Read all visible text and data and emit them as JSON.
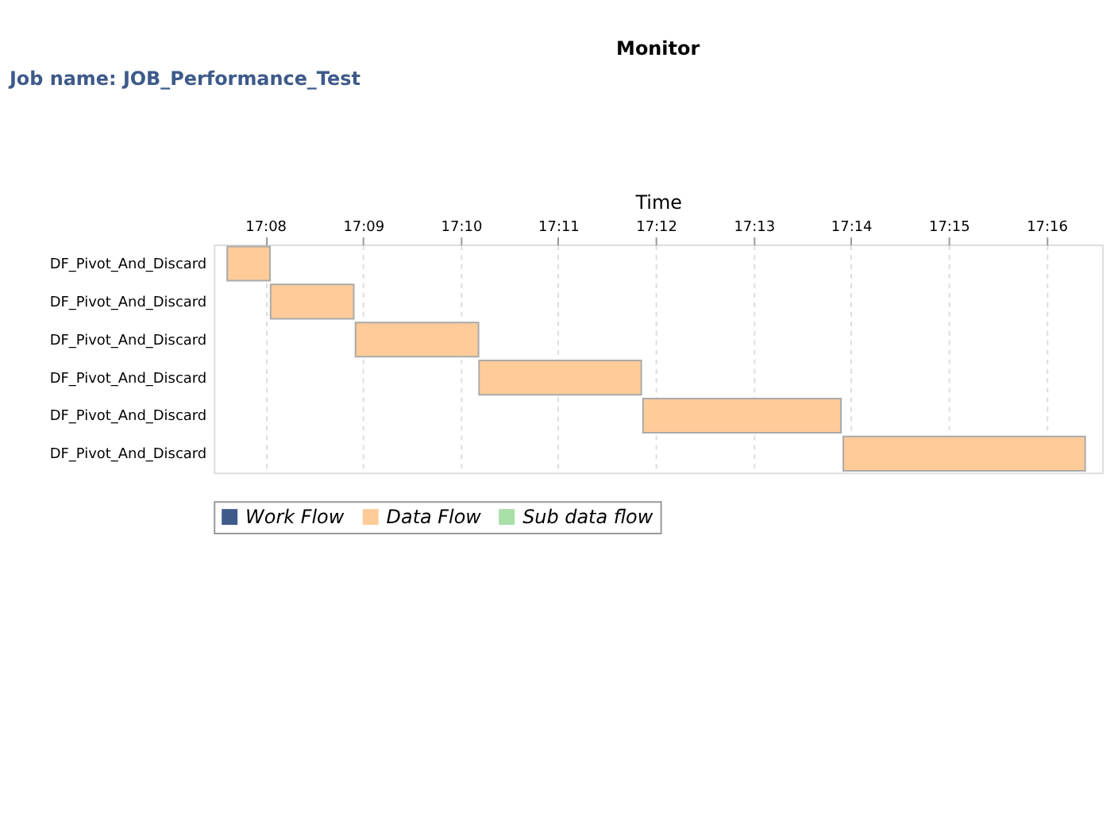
{
  "chart_data": {
    "type": "bar",
    "orientation": "horizontal",
    "title": "Monitor",
    "xlabel": "Time",
    "annotations": [
      "Job name: JOB_Performance_Test"
    ],
    "categories": [
      "DF_Pivot_And_Discard",
      "DF_Pivot_And_Discard",
      "DF_Pivot_And_Discard",
      "DF_Pivot_And_Discard",
      "DF_Pivot_And_Discard",
      "DF_Pivot_And_Discard"
    ],
    "series": [
      {
        "name": "Work Flow",
        "color": "#3d5a8a",
        "values": [
          null,
          null,
          null,
          null,
          null,
          null
        ]
      },
      {
        "name": "Data Flow",
        "color": "#ffcc99",
        "base": [
          17.1268,
          17.1342,
          17.1487,
          17.1698,
          17.1978,
          17.232
        ],
        "values": [
          0.0073,
          0.0142,
          0.021,
          0.0277,
          0.0338,
          0.0413
        ]
      },
      {
        "name": "Sub data flow",
        "color": "#a8e0a8",
        "values": [
          null,
          null,
          null,
          null,
          null,
          null
        ]
      }
    ],
    "xlim": [
      17.1245,
      17.2762
    ],
    "xticks": [
      {
        "value": 17.1333,
        "label": "17:08"
      },
      {
        "value": 17.15,
        "label": "17:09"
      },
      {
        "value": 17.1667,
        "label": "17:10"
      },
      {
        "value": 17.1833,
        "label": "17:11"
      },
      {
        "value": 17.2,
        "label": "17:12"
      },
      {
        "value": 17.2167,
        "label": "17:13"
      },
      {
        "value": 17.2333,
        "label": "17:14"
      },
      {
        "value": 17.25,
        "label": "17:15"
      },
      {
        "value": 17.2667,
        "label": "17:16"
      }
    ],
    "grid": "x",
    "legend": "bottom"
  }
}
